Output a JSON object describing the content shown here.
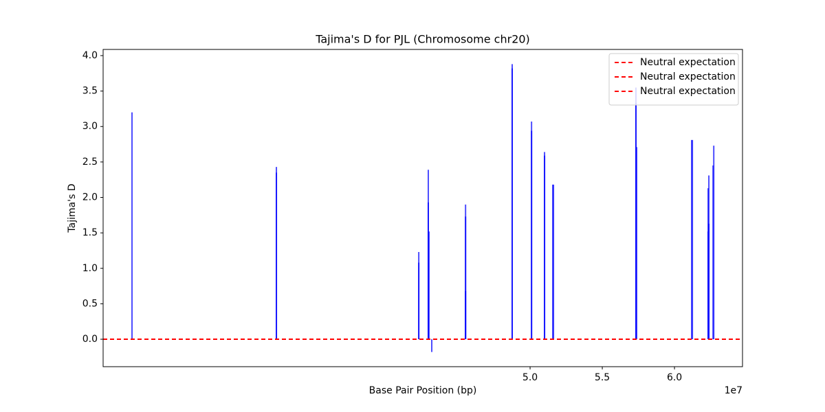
{
  "chart_data": {
    "type": "vlines",
    "title": "Tajima's D for PJL (Chromosome chr20)",
    "xlabel": "Base Pair Position (bp)",
    "ylabel": "Tajima's D",
    "x_offset_label": "1e7",
    "xlim": [
      20430000,
      64710000
    ],
    "ylim": [
      -0.387,
      4.087
    ],
    "xticks": [
      {
        "value": 50000000,
        "label": "5.0"
      },
      {
        "value": 55000000,
        "label": "5.5"
      },
      {
        "value": 60000000,
        "label": "6.0"
      }
    ],
    "yticks": [
      {
        "value": 0,
        "label": "0.0"
      },
      {
        "value": 0.5,
        "label": "0.5"
      },
      {
        "value": 1,
        "label": "1.0"
      },
      {
        "value": 1.5,
        "label": "1.5"
      },
      {
        "value": 2,
        "label": "2.0"
      },
      {
        "value": 2.5,
        "label": "2.5"
      },
      {
        "value": 3,
        "label": "3.0"
      },
      {
        "value": 3.5,
        "label": "3.5"
      },
      {
        "value": 4,
        "label": "4.0"
      }
    ],
    "color": "#0000ff",
    "x": [
      22430000,
      32430000,
      32430000,
      42290000,
      42290000,
      42950000,
      42950000,
      43000000,
      43190000,
      45530000,
      45530000,
      45530000,
      48760000,
      48760000,
      50100000,
      50100000,
      51000000,
      51000000,
      51570000,
      51620000,
      57330000,
      57330000,
      57380000,
      61190000,
      61240000,
      62330000,
      62330000,
      62380000,
      62380000,
      62670000,
      62720000
    ],
    "values": [
      3.2,
      2.43,
      2.35,
      1.23,
      1.08,
      2.39,
      1.93,
      1.52,
      -0.18,
      1.9,
      1.73,
      0.68,
      3.88,
      3.82,
      3.07,
      2.94,
      2.64,
      2.59,
      2.18,
      2.18,
      3.55,
      3.33,
      2.71,
      2.81,
      2.81,
      2.13,
      1.52,
      2.31,
      1.63,
      2.45,
      2.73
    ],
    "reference_lines": [
      {
        "name": "Neutral expectation",
        "y": 0,
        "color": "#ff0000"
      },
      {
        "name": "Neutral expectation",
        "y": 0,
        "color": "#ff0000"
      },
      {
        "name": "Neutral expectation",
        "y": 0,
        "color": "#ff0000"
      }
    ],
    "legend": "upper right"
  }
}
